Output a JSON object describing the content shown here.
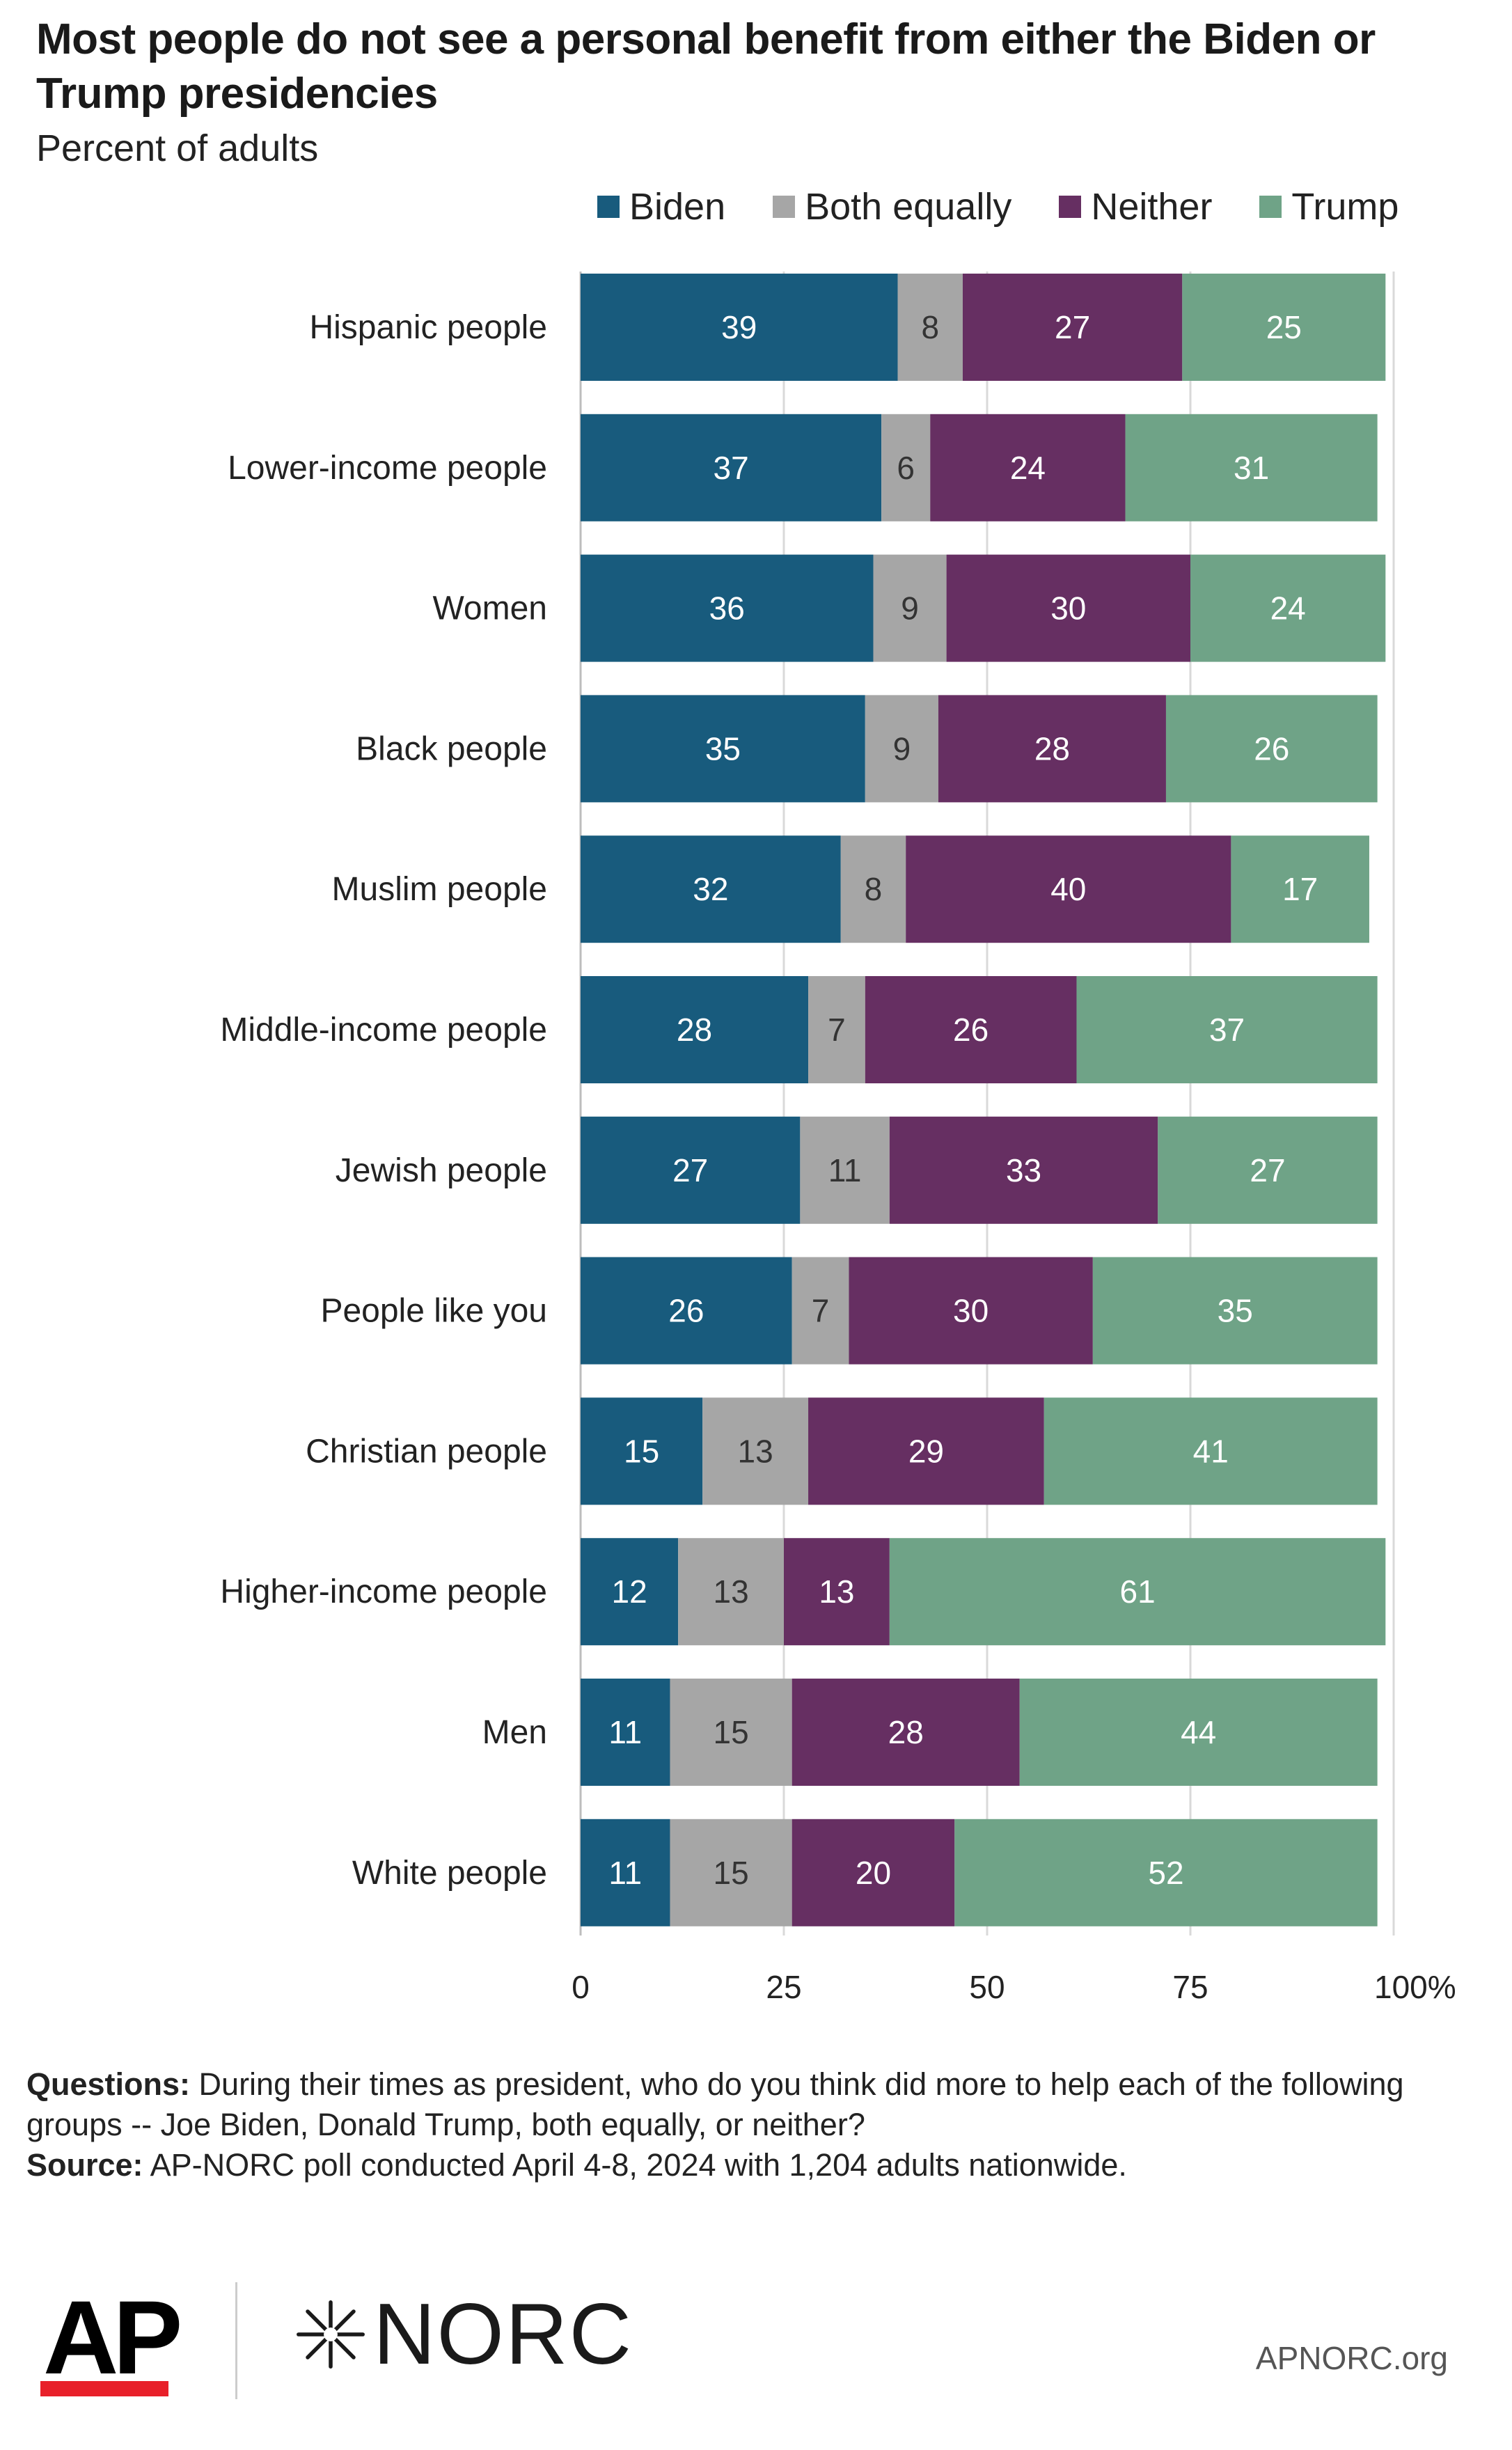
{
  "title": "Most people do not see a personal benefit from either the Biden or Trump presidencies",
  "subtitle": "Percent of adults",
  "legend": [
    {
      "label": "Biden",
      "color": "#185b7d"
    },
    {
      "label": "Both equally",
      "color": "#a6a6a6"
    },
    {
      "label": "Neither",
      "color": "#662f62"
    },
    {
      "label": "Trump",
      "color": "#6fa387"
    }
  ],
  "chart_data": {
    "type": "bar",
    "orientation": "horizontal",
    "stacked": true,
    "categories": [
      "Hispanic people",
      "Lower-income people",
      "Women",
      "Black people",
      "Muslim people",
      "Middle-income people",
      "Jewish people",
      "People like you",
      "Christian people",
      "Higher-income people",
      "Men",
      "White people"
    ],
    "series": [
      {
        "name": "Biden",
        "color": "#185b7d",
        "label_color": "#ffffff",
        "values": [
          39,
          37,
          36,
          35,
          32,
          28,
          27,
          26,
          15,
          12,
          11,
          11
        ]
      },
      {
        "name": "Both equally",
        "color": "#a6a6a6",
        "label_color": "#333333",
        "values": [
          8,
          6,
          9,
          9,
          8,
          7,
          11,
          7,
          13,
          13,
          15,
          15
        ]
      },
      {
        "name": "Neither",
        "color": "#662f62",
        "label_color": "#ffffff",
        "values": [
          27,
          24,
          30,
          28,
          40,
          26,
          33,
          30,
          29,
          13,
          28,
          20
        ]
      },
      {
        "name": "Trump",
        "color": "#6fa387",
        "label_color": "#ffffff",
        "values": [
          25,
          31,
          24,
          26,
          17,
          37,
          27,
          35,
          41,
          61,
          44,
          52
        ]
      }
    ],
    "xlim": [
      0,
      100
    ],
    "xticks": [
      0,
      25,
      50,
      75,
      100
    ],
    "xtick_labels": [
      "0",
      "25",
      "50",
      "75",
      "100%"
    ],
    "xlabel": "",
    "ylabel": "",
    "legend_position": "top",
    "grid": true
  },
  "footnote": {
    "questions_label": "Questions:",
    "questions_text": "During their times as president, who do you think did more to help each of the following groups -- Joe Biden, Donald Trump, both equally, or neither?",
    "source_label": "Source:",
    "source_text": "AP-NORC poll conducted April 4-8, 2024 with 1,204 adults nationwide."
  },
  "logos": {
    "ap": "AP",
    "norc": "NORC",
    "site": "APNORC.org"
  }
}
